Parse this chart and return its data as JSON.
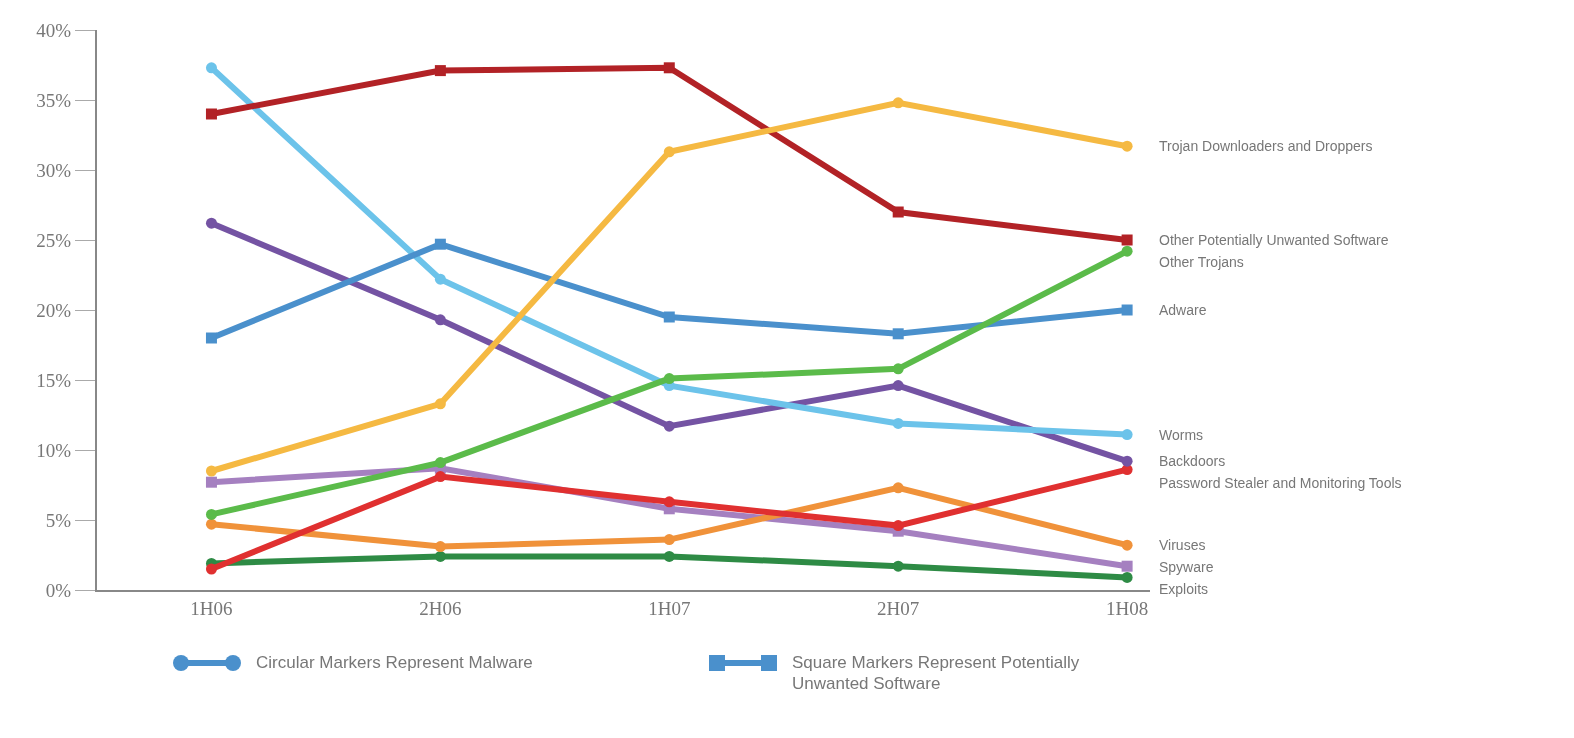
{
  "chart_data": {
    "type": "line",
    "categories": [
      "1H06",
      "2H06",
      "1H07",
      "2H07",
      "1H08"
    ],
    "ylim": [
      0,
      40
    ],
    "yticks": [
      {
        "value": 0,
        "label": "0%"
      },
      {
        "value": 5,
        "label": "5%"
      },
      {
        "value": 10,
        "label": "10%"
      },
      {
        "value": 15,
        "label": "15%"
      },
      {
        "value": 20,
        "label": "20%"
      },
      {
        "value": 25,
        "label": "25%"
      },
      {
        "value": 30,
        "label": "30%"
      },
      {
        "value": 35,
        "label": "35%"
      },
      {
        "value": 40,
        "label": "40%"
      }
    ],
    "grid": false,
    "legend": false,
    "line_style": "solid",
    "series": [
      {
        "name": "Trojan Downloaders and Droppers",
        "color": "#f5b942",
        "marker": "circle",
        "values": [
          8.5,
          13.3,
          31.3,
          34.8,
          31.7
        ]
      },
      {
        "name": "Other Potentially Unwanted Software",
        "color": "#b22226",
        "marker": "square",
        "values": [
          34,
          37.1,
          37.3,
          27,
          25
        ]
      },
      {
        "name": "Other Trojans",
        "color": "#5bbb4a",
        "marker": "circle",
        "values": [
          5.4,
          9.1,
          15.1,
          15.8,
          24.2
        ]
      },
      {
        "name": "Adware",
        "color": "#4a90cc",
        "marker": "square",
        "values": [
          18,
          24.7,
          19.5,
          18.3,
          20
        ]
      },
      {
        "name": "Worms",
        "color": "#6cc3ea",
        "marker": "circle",
        "values": [
          37.3,
          22.2,
          14.6,
          11.9,
          11.1
        ]
      },
      {
        "name": "Backdoors",
        "color": "#7453a3",
        "marker": "circle",
        "values": [
          26.2,
          19.3,
          11.7,
          14.6,
          9.2
        ]
      },
      {
        "name": "Password Stealer and Monitoring Tools",
        "color": "#e03030",
        "marker": "circle",
        "values": [
          1.5,
          8.1,
          6.3,
          4.6,
          8.6
        ]
      },
      {
        "name": "Viruses",
        "color": "#f0923a",
        "marker": "circle",
        "values": [
          4.7,
          3.1,
          3.6,
          7.3,
          3.2
        ]
      },
      {
        "name": "Spyware",
        "color": "#a580c0",
        "marker": "square",
        "values": [
          7.7,
          8.7,
          5.8,
          4.2,
          1.7
        ]
      },
      {
        "name": "Exploits",
        "color": "#2e8b45",
        "marker": "circle",
        "values": [
          1.9,
          2.4,
          2.4,
          1.7,
          0.9
        ]
      }
    ],
    "annotations": [
      "Circular Markers Represent Malware",
      "Square Markers Represent Potentially Unwanted Software"
    ]
  }
}
